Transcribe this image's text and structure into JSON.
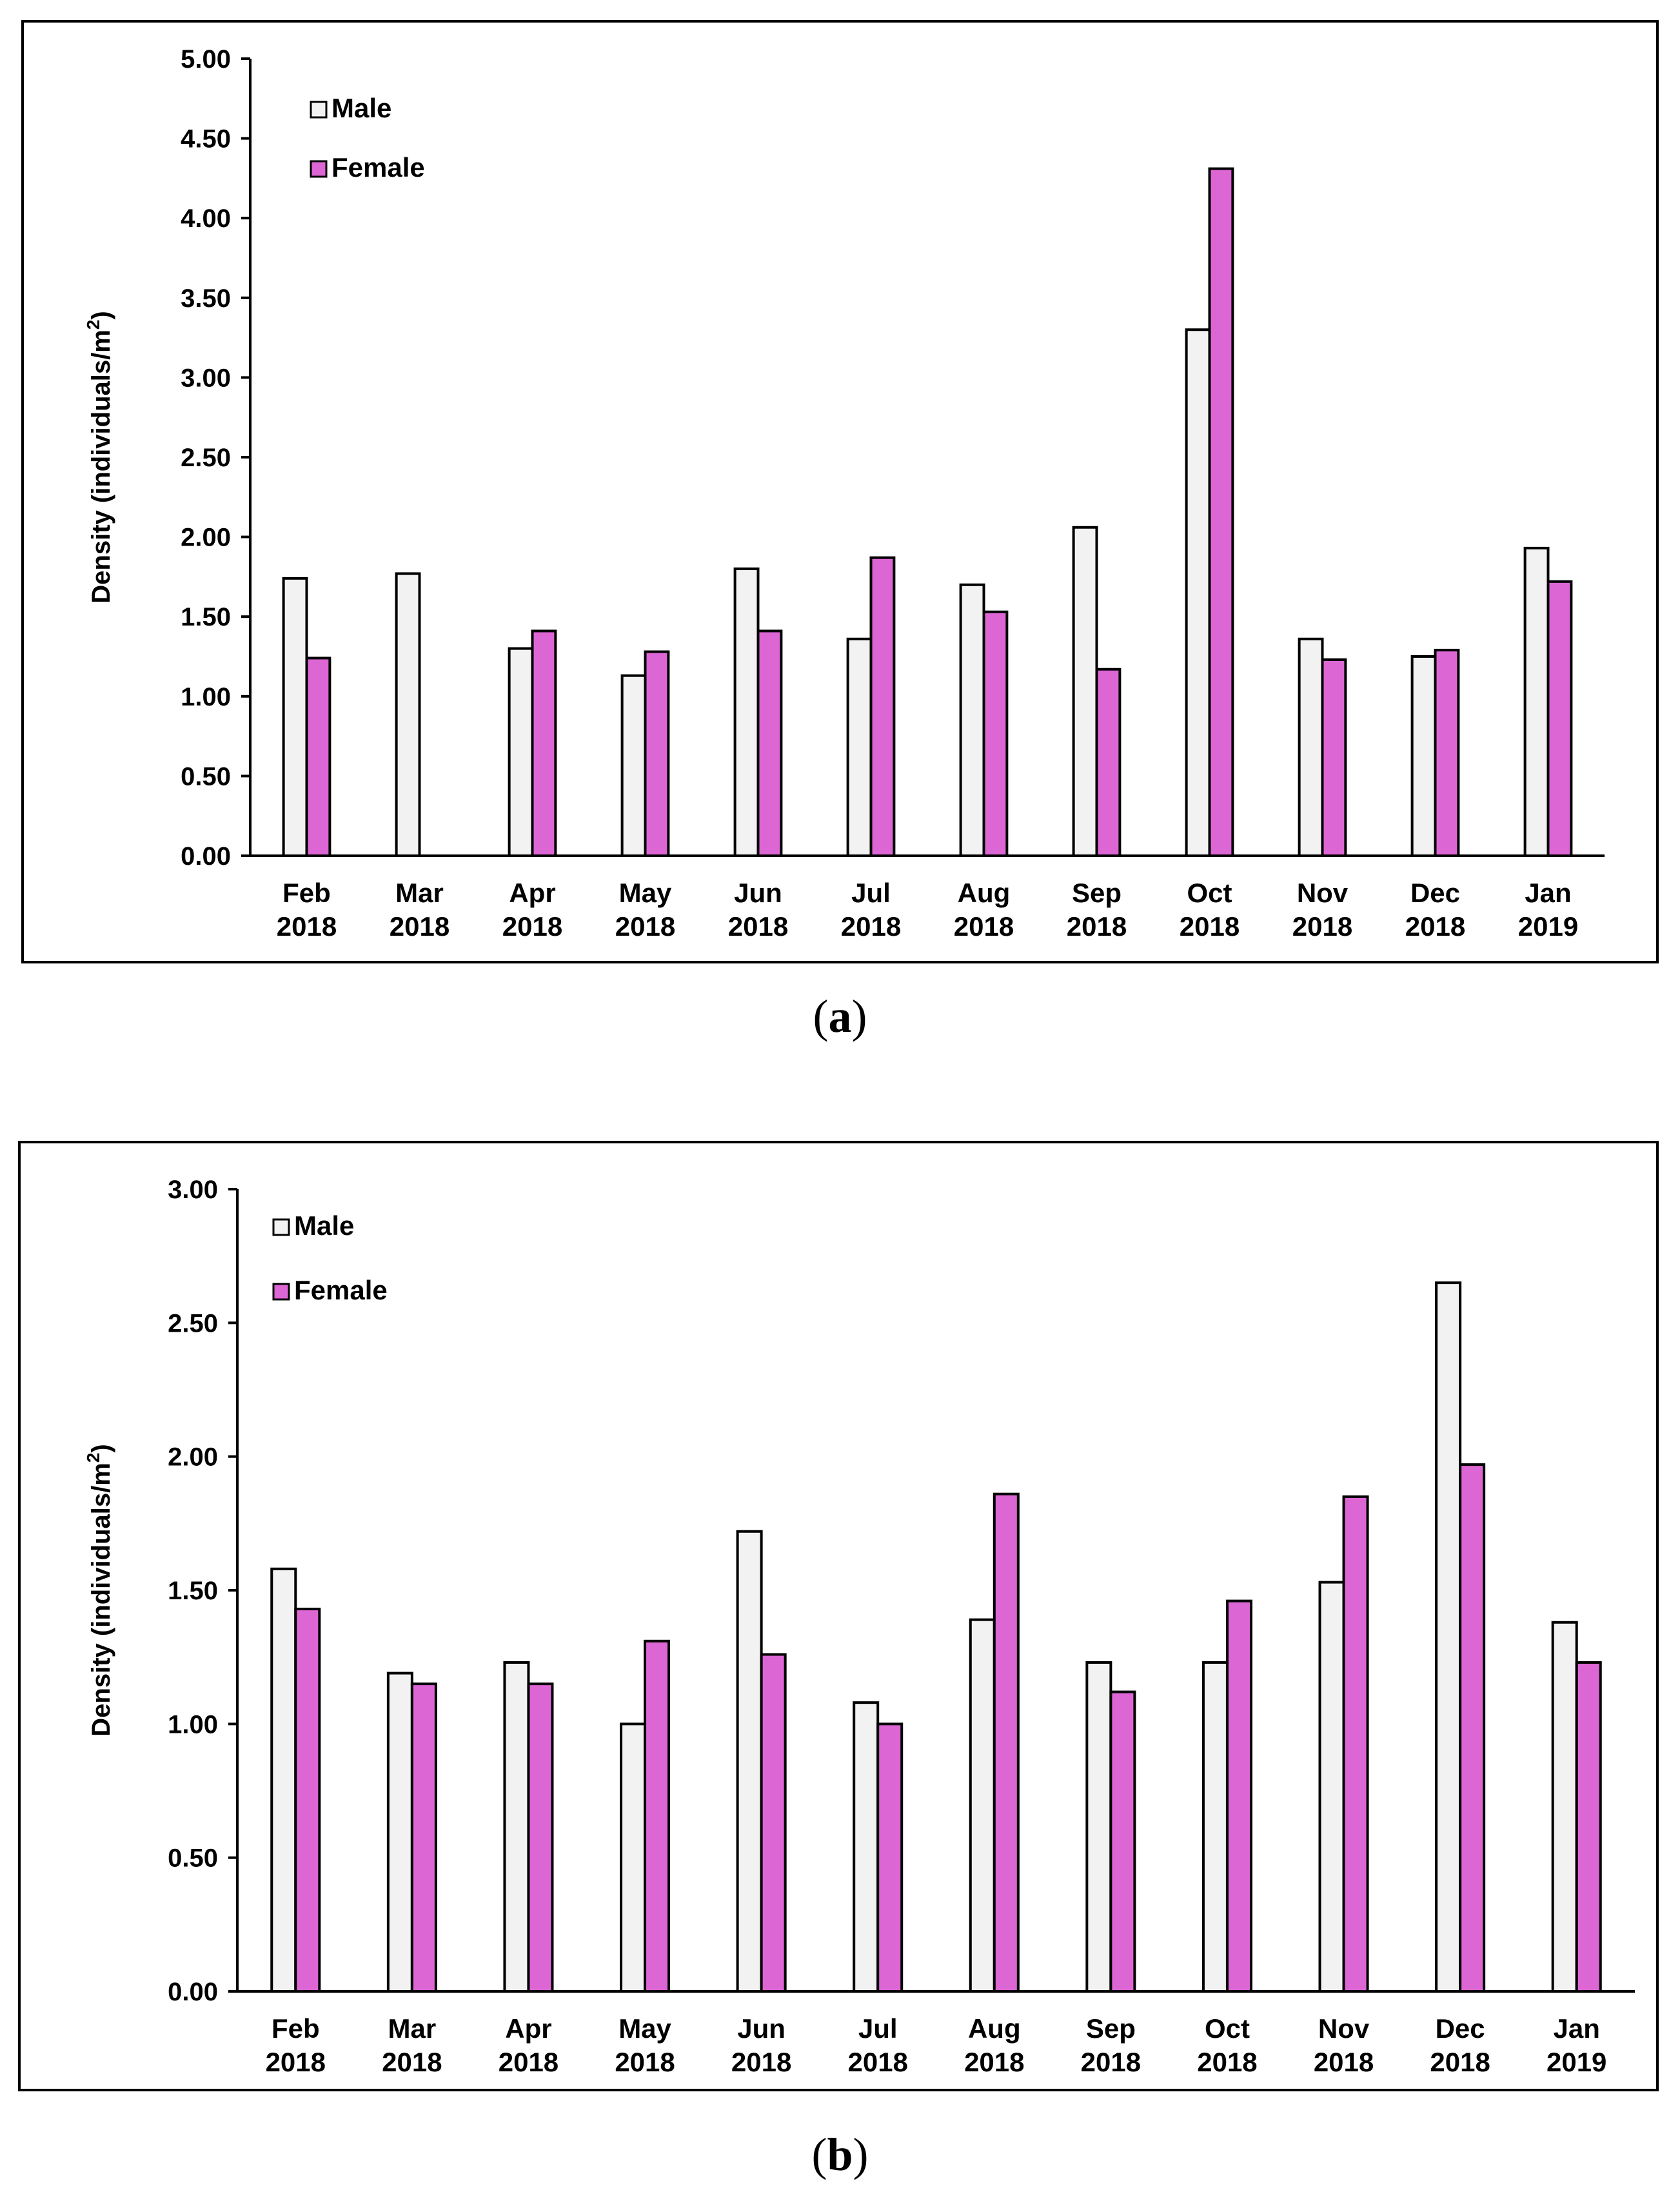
{
  "chart_data": [
    {
      "type": "bar",
      "panel": "a",
      "caption_letter": "a",
      "ylabel_main": "Density (individuals/m",
      "ylabel_sup": "2",
      "ylabel_end": ")",
      "xlabel": "",
      "ylim": [
        0,
        5
      ],
      "ytick_values": [
        0,
        0.5,
        1,
        1.5,
        2,
        2.5,
        3,
        3.5,
        4,
        4.5,
        5
      ],
      "ytick_labels": [
        "0.00",
        "0.50",
        "1.00",
        "1.50",
        "2.00",
        "2.50",
        "3.00",
        "3.50",
        "4.00",
        "4.50",
        "5.00"
      ],
      "categories": [
        [
          "Feb",
          "2018"
        ],
        [
          "Mar",
          "2018"
        ],
        [
          "Apr",
          "2018"
        ],
        [
          "May",
          "2018"
        ],
        [
          "Jun",
          "2018"
        ],
        [
          "Jul",
          "2018"
        ],
        [
          "Aug",
          "2018"
        ],
        [
          "Sep",
          "2018"
        ],
        [
          "Oct",
          "2018"
        ],
        [
          "Nov",
          "2018"
        ],
        [
          "Dec",
          "2018"
        ],
        [
          "Jan",
          "2019"
        ]
      ],
      "legend_position": "top-left",
      "series": [
        {
          "name": "Male",
          "color": "#f2f2f2",
          "values": [
            1.74,
            1.77,
            1.3,
            1.13,
            1.8,
            1.36,
            1.7,
            2.06,
            3.3,
            1.36,
            1.25,
            1.93
          ]
        },
        {
          "name": "Female",
          "color": "#dd66d5",
          "values": [
            1.24,
            0,
            1.41,
            1.28,
            1.41,
            1.87,
            1.53,
            1.17,
            4.31,
            1.23,
            1.29,
            1.72
          ]
        }
      ]
    },
    {
      "type": "bar",
      "panel": "b",
      "caption_letter": "b",
      "ylabel_main": "Density (individuals/m",
      "ylabel_sup": "2",
      "ylabel_end": ")",
      "xlabel": "",
      "ylim": [
        0,
        3
      ],
      "ytick_values": [
        0,
        0.5,
        1,
        1.5,
        2,
        2.5,
        3
      ],
      "ytick_labels": [
        "0.00",
        "0.50",
        "1.00",
        "1.50",
        "2.00",
        "2.50",
        "3.00"
      ],
      "categories": [
        [
          "Feb",
          "2018"
        ],
        [
          "Mar",
          "2018"
        ],
        [
          "Apr",
          "2018"
        ],
        [
          "May",
          "2018"
        ],
        [
          "Jun",
          "2018"
        ],
        [
          "Jul",
          "2018"
        ],
        [
          "Aug",
          "2018"
        ],
        [
          "Sep",
          "2018"
        ],
        [
          "Oct",
          "2018"
        ],
        [
          "Nov",
          "2018"
        ],
        [
          "Dec",
          "2018"
        ],
        [
          "Jan",
          "2019"
        ]
      ],
      "legend_position": "top-left",
      "series": [
        {
          "name": "Male",
          "color": "#f2f2f2",
          "values": [
            1.58,
            1.19,
            1.23,
            1.0,
            1.72,
            1.08,
            1.39,
            1.23,
            1.23,
            1.53,
            2.65,
            1.38
          ]
        },
        {
          "name": "Female",
          "color": "#dd66d5",
          "values": [
            1.43,
            1.15,
            1.15,
            1.31,
            1.26,
            1.0,
            1.86,
            1.12,
            1.46,
            1.85,
            1.97,
            1.23
          ]
        }
      ]
    }
  ]
}
